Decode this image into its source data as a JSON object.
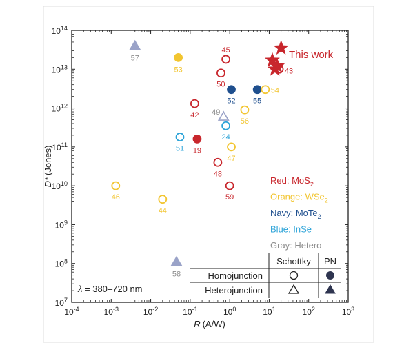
{
  "chart_data": {
    "type": "scatter",
    "xlabel": "R (A/W)",
    "xlabel_var": "R",
    "xlabel_unit": "(A/W)",
    "ylabel": "D* (Jones)",
    "ylabel_var": "D*",
    "ylabel_unit": "(Jones)",
    "xscale": "log",
    "yscale": "log",
    "xlim": [
      0.0001,
      1000
    ],
    "ylim": [
      10000000,
      100000000000000
    ],
    "x_ticks": [
      {
        "value": 0.0001,
        "base": "10",
        "exp": "-4"
      },
      {
        "value": 0.001,
        "base": "10",
        "exp": "-3"
      },
      {
        "value": 0.01,
        "base": "10",
        "exp": "-2"
      },
      {
        "value": 0.1,
        "base": "10",
        "exp": "-1"
      },
      {
        "value": 1,
        "base": "10",
        "exp": "0"
      },
      {
        "value": 10,
        "base": "10",
        "exp": "1"
      },
      {
        "value": 100,
        "base": "10",
        "exp": "2"
      },
      {
        "value": 1000,
        "base": "10",
        "exp": "3"
      }
    ],
    "y_ticks": [
      {
        "value": 10000000,
        "base": "10",
        "exp": "7"
      },
      {
        "value": 100000000,
        "base": "10",
        "exp": "8"
      },
      {
        "value": 1000000000,
        "base": "10",
        "exp": "9"
      },
      {
        "value": 10000000000,
        "base": "10",
        "exp": "10"
      },
      {
        "value": 100000000000,
        "base": "10",
        "exp": "11"
      },
      {
        "value": 1000000000000,
        "base": "10",
        "exp": "12"
      },
      {
        "value": 10000000000000,
        "base": "10",
        "exp": "13"
      },
      {
        "value": 100000000000000,
        "base": "10",
        "exp": "14"
      }
    ],
    "grid": false,
    "colors": {
      "red": "#c8262c",
      "orange": "#f2c530",
      "navy": "#1f4f8e",
      "blue": "#2ba3d8",
      "gray": "#9aa3c8",
      "gray_label": "#8d8d8d"
    },
    "points": [
      {
        "label": "57",
        "x": 0.004,
        "y": 40000000000000,
        "marker": "triangle",
        "fill": "filled",
        "color": "gray"
      },
      {
        "label": "53",
        "x": 0.05,
        "y": 20000000000000,
        "marker": "circle",
        "fill": "filled",
        "color": "orange"
      },
      {
        "label": "45",
        "x": 0.8,
        "y": 18000000000000,
        "marker": "circle",
        "fill": "open",
        "color": "red"
      },
      {
        "label": "50",
        "x": 0.6,
        "y": 8000000000000,
        "marker": "circle",
        "fill": "open",
        "color": "red"
      },
      {
        "label": "43",
        "x": 18,
        "y": 10000000000000,
        "marker": "circle",
        "fill": "open",
        "color": "red"
      },
      {
        "label": "52",
        "x": 1.1,
        "y": 3000000000000,
        "marker": "circle",
        "fill": "filled",
        "color": "navy"
      },
      {
        "label": "55",
        "x": 5,
        "y": 3000000000000,
        "marker": "circle",
        "fill": "filled",
        "color": "navy"
      },
      {
        "label": "54",
        "x": 8,
        "y": 3000000000000,
        "marker": "circle",
        "fill": "open",
        "color": "orange"
      },
      {
        "label": "42",
        "x": 0.13,
        "y": 1300000000000,
        "marker": "circle",
        "fill": "open",
        "color": "red"
      },
      {
        "label": "56",
        "x": 2.4,
        "y": 900000000000,
        "marker": "circle",
        "fill": "open",
        "color": "orange"
      },
      {
        "label": "49",
        "x": 0.7,
        "y": 600000000000,
        "marker": "triangle",
        "fill": "open",
        "color": "gray"
      },
      {
        "label": "24",
        "x": 0.8,
        "y": 350000000000,
        "marker": "circle",
        "fill": "open",
        "color": "blue"
      },
      {
        "label": "51",
        "x": 0.055,
        "y": 180000000000,
        "marker": "circle",
        "fill": "open",
        "color": "blue"
      },
      {
        "label": "19",
        "x": 0.15,
        "y": 160000000000,
        "marker": "circle",
        "fill": "filled",
        "color": "red"
      },
      {
        "label": "47",
        "x": 1.1,
        "y": 100000000000,
        "marker": "circle",
        "fill": "open",
        "color": "orange"
      },
      {
        "label": "48",
        "x": 0.5,
        "y": 40000000000,
        "marker": "circle",
        "fill": "open",
        "color": "red"
      },
      {
        "label": "46",
        "x": 0.0013,
        "y": 10000000000,
        "marker": "circle",
        "fill": "open",
        "color": "orange"
      },
      {
        "label": "59",
        "x": 1,
        "y": 10000000000,
        "marker": "circle",
        "fill": "open",
        "color": "red"
      },
      {
        "label": "44",
        "x": 0.02,
        "y": 4500000000,
        "marker": "circle",
        "fill": "open",
        "color": "orange"
      },
      {
        "label": "58",
        "x": 0.045,
        "y": 110000000,
        "marker": "triangle",
        "fill": "filled",
        "color": "gray"
      }
    ],
    "this_work": {
      "label": "This work",
      "color": "red",
      "marker": "star",
      "points": [
        {
          "x": 20,
          "y": 35000000000000
        },
        {
          "x": 12,
          "y": 17000000000000
        },
        {
          "x": 14,
          "y": 10000000000000
        },
        {
          "x": 16,
          "y": 12000000000000
        }
      ]
    },
    "legend": {
      "position": "right",
      "entries": [
        {
          "text": "Red: MoS",
          "sub": "2",
          "color": "red"
        },
        {
          "text": "Orange: WSe",
          "sub": "2",
          "color": "orange"
        },
        {
          "text": "Navy: MoTe",
          "sub": "2",
          "color": "navy"
        },
        {
          "text": "Blue: InSe",
          "sub": "",
          "color": "blue"
        },
        {
          "text": "Gray: Hetero",
          "sub": "",
          "color": "gray_label"
        }
      ]
    },
    "marker_key": {
      "position": "bottom-right",
      "col_headers": [
        "Schottky",
        "PN"
      ],
      "rows": [
        {
          "label": "Homojunction",
          "schottky": "open-circle",
          "pn": "filled-circle"
        },
        {
          "label": "Heterojunction",
          "schottky": "open-triangle",
          "pn": "filled-triangle"
        }
      ]
    },
    "annotation": {
      "prefix": "λ",
      "text": " = 380–720 nm",
      "position": "bottom-left"
    }
  }
}
